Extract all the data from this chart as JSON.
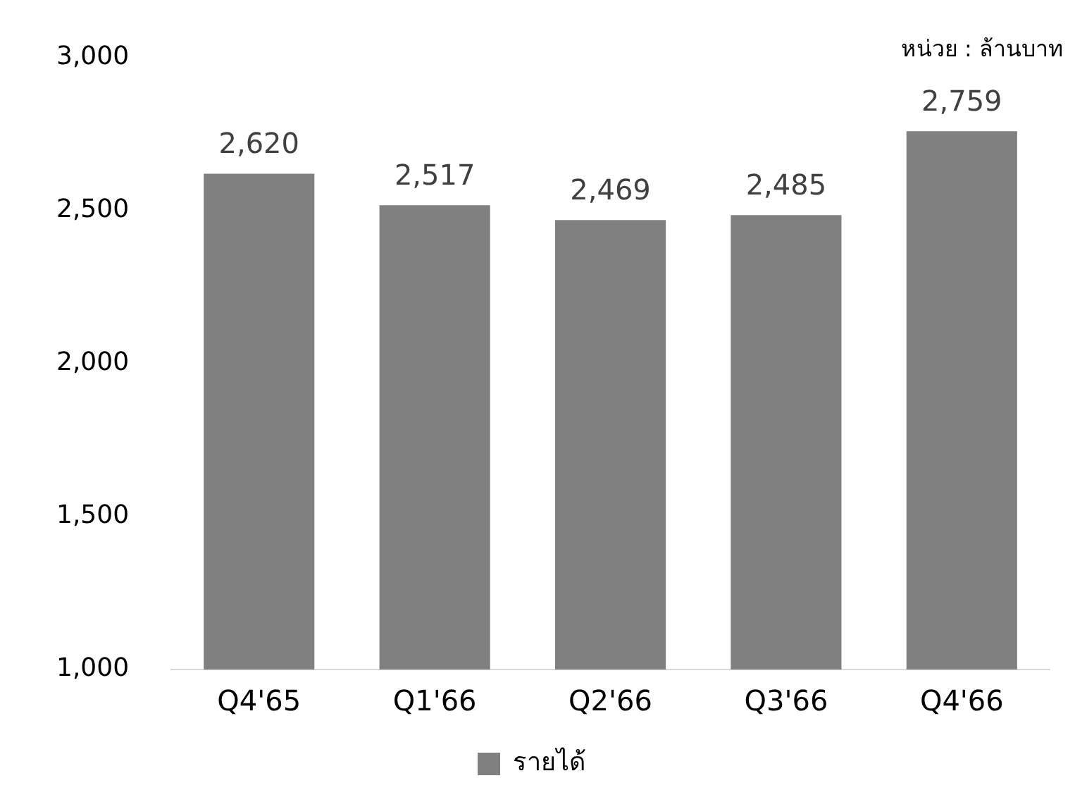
{
  "chart_data": {
    "type": "bar",
    "categories": [
      "Q4'65",
      "Q1'66",
      "Q2'66",
      "Q3'66",
      "Q4'66"
    ],
    "series": [
      {
        "name": "รายได้",
        "color": "#808080",
        "values": [
          2620,
          2517,
          2469,
          2485,
          2759
        ],
        "value_labels": [
          "2,620",
          "2,517",
          "2,469",
          "2,485",
          "2,759"
        ]
      }
    ],
    "ylim": [
      1000,
      3000
    ],
    "yticks": [
      {
        "value": 1000,
        "label": "1,000"
      },
      {
        "value": 1500,
        "label": "1,500"
      },
      {
        "value": 2000,
        "label": "2,000"
      },
      {
        "value": 2500,
        "label": "2,500"
      },
      {
        "value": 3000,
        "label": "3,000"
      }
    ],
    "grid": false,
    "legend": "bottom",
    "annotations": [
      "หน่วย : ล้านบาท"
    ]
  }
}
